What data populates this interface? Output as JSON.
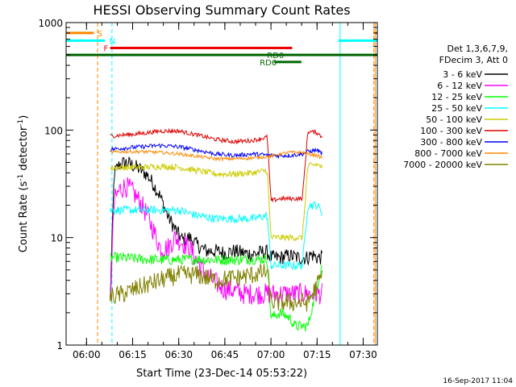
{
  "chart_data": {
    "type": "line",
    "title": "HESSI Observing Summary Count Rates",
    "xlabel": "Start Time (23-Dec-14 05:53:22)",
    "ylabel": "Count Rate (s⁻¹ detector⁻¹)",
    "ylabel_main": "Count Rate (s",
    "ylabel_sup1": "-1",
    "ylabel_mid": " detector",
    "ylabel_sup2": "-1",
    "ylabel_end": ")",
    "footer_text": "16-Sep-2017 11:04",
    "yscale": "log",
    "ylim": [
      1,
      1000
    ],
    "xlim": [
      5.8894,
      7.5767
    ],
    "x_unit": "hours UT",
    "x_ticks": [
      {
        "value": 6.0,
        "label": "06:00"
      },
      {
        "value": 6.25,
        "label": "06:15"
      },
      {
        "value": 6.5,
        "label": "06:30"
      },
      {
        "value": 6.75,
        "label": "06:45"
      },
      {
        "value": 7.0,
        "label": "07:00"
      },
      {
        "value": 7.25,
        "label": "07:15"
      },
      {
        "value": 7.5,
        "label": "07:30"
      }
    ],
    "y_ticks": [
      {
        "value": 1,
        "label": "1"
      },
      {
        "value": 10,
        "label": "10"
      },
      {
        "value": 100,
        "label": "100"
      },
      {
        "value": 1000,
        "label": "1000"
      }
    ],
    "legend": {
      "position": "right",
      "header_line1": "Det 1,3,6,7,9,",
      "header_line2": "FDecim 3, Att 0"
    },
    "series": [
      {
        "name": "3 - 6 keV",
        "color": "#000000",
        "x": [
          6.128,
          6.15,
          6.18,
          6.21,
          6.24,
          6.27,
          6.3,
          6.33,
          6.36,
          6.4,
          6.44,
          6.48,
          6.52,
          6.56,
          6.6,
          6.65,
          6.7,
          6.75,
          6.8,
          6.85,
          6.9,
          6.95,
          6.98,
          7.0,
          7.05,
          7.1,
          7.15,
          7.2,
          7.22,
          7.25,
          7.28
        ],
        "y": [
          2.5,
          40,
          48,
          50,
          48,
          45,
          42,
          38,
          32,
          24,
          16,
          12,
          9.5,
          10,
          8.5,
          7.5,
          7.5,
          7.2,
          7.5,
          7.2,
          7,
          7.3,
          7.3,
          6.5,
          6.5,
          6.8,
          6.5,
          6.5,
          7,
          6.5,
          6.5
        ]
      },
      {
        "name": "6 - 12 keV",
        "color": "#ff00ff",
        "x": [
          6.128,
          6.15,
          6.18,
          6.21,
          6.24,
          6.27,
          6.3,
          6.33,
          6.36,
          6.4,
          6.44,
          6.48,
          6.52,
          6.56,
          6.6,
          6.65,
          6.7,
          6.75,
          6.8,
          6.85,
          6.9,
          6.95,
          6.98,
          7.0,
          7.05,
          7.1,
          7.15,
          7.2,
          7.22,
          7.25,
          7.28
        ],
        "y": [
          2.5,
          22,
          28,
          30,
          28,
          24,
          20,
          16,
          12,
          8,
          8,
          10,
          9,
          8,
          6,
          4.5,
          3.8,
          3.3,
          3.2,
          3.0,
          3.0,
          3.0,
          3.0,
          3.0,
          3.0,
          3.0,
          3.0,
          3.0,
          3.0,
          3.0,
          3.0
        ]
      },
      {
        "name": "12 - 25 keV",
        "color": "#00ff00",
        "x": [
          6.128,
          6.2,
          6.3,
          6.4,
          6.5,
          6.6,
          6.7,
          6.8,
          6.9,
          6.98,
          7.0,
          7.05,
          7.1,
          7.13,
          7.2,
          7.28
        ],
        "y": [
          6.5,
          6.5,
          6.3,
          6.2,
          6.2,
          6.3,
          6.2,
          6.2,
          6.3,
          6.3,
          1.8,
          2.0,
          1.8,
          1.5,
          1.5,
          6.0
        ]
      },
      {
        "name": "25 - 50 keV",
        "color": "#00ffff",
        "x": [
          6.128,
          6.2,
          6.3,
          6.4,
          6.5,
          6.6,
          6.7,
          6.8,
          6.9,
          6.98,
          7.0,
          7.05,
          7.1,
          7.17,
          7.2,
          7.25,
          7.28
        ],
        "y": [
          18,
          18,
          18,
          18,
          18,
          16,
          15,
          15,
          15,
          16,
          5.5,
          5.5,
          5.5,
          5.5,
          20,
          20,
          17
        ]
      },
      {
        "name": "50 - 100 keV",
        "color": "#cccc00",
        "x": [
          6.128,
          6.2,
          6.3,
          6.4,
          6.5,
          6.6,
          6.7,
          6.8,
          6.9,
          6.98,
          7.0,
          7.05,
          7.1,
          7.17,
          7.2,
          7.25,
          7.28
        ],
        "y": [
          44,
          45,
          45,
          46,
          45,
          42,
          39,
          39,
          40,
          42,
          10,
          10,
          10,
          10,
          46,
          48,
          45
        ]
      },
      {
        "name": "100 - 300 keV",
        "color": "#dd0000",
        "x": [
          6.128,
          6.2,
          6.3,
          6.4,
          6.5,
          6.6,
          6.7,
          6.8,
          6.9,
          6.98,
          7.0,
          7.05,
          7.1,
          7.17,
          7.2,
          7.25,
          7.28
        ],
        "y": [
          88,
          90,
          93,
          98,
          98,
          90,
          82,
          78,
          80,
          86,
          22,
          23,
          23,
          23,
          97,
          95,
          85
        ]
      },
      {
        "name": "300 - 800 keV",
        "color": "#0000ff",
        "x": [
          6.128,
          6.2,
          6.3,
          6.4,
          6.5,
          6.6,
          6.7,
          6.8,
          6.9,
          7.0,
          7.05,
          7.1,
          7.17,
          7.2,
          7.25,
          7.28
        ],
        "y": [
          66,
          68,
          70,
          72,
          70,
          65,
          60,
          58,
          60,
          58,
          58,
          58,
          60,
          63,
          65,
          60
        ]
      },
      {
        "name": "800 - 7000 keV",
        "color": "#ff8800",
        "x": [
          6.128,
          6.2,
          6.3,
          6.4,
          6.5,
          6.6,
          6.7,
          6.8,
          6.9,
          7.0,
          7.05,
          7.1,
          7.17,
          7.2,
          7.25,
          7.28
        ],
        "y": [
          62,
          63,
          63,
          62,
          60,
          57,
          54,
          54,
          55,
          57,
          60,
          62,
          62,
          60,
          58,
          55
        ]
      },
      {
        "name": "7000 - 20000 keV",
        "color": "#808000",
        "x": [
          6.128,
          6.2,
          6.3,
          6.4,
          6.5,
          6.6,
          6.7,
          6.8,
          6.9,
          6.98,
          7.0,
          7.1,
          7.2,
          7.28
        ],
        "y": [
          2.8,
          3.0,
          3.5,
          4.0,
          4.5,
          4.5,
          4.0,
          4.2,
          4.5,
          4.8,
          2.5,
          2.5,
          2.5,
          4.5
        ]
      }
    ],
    "flag_bars": [
      {
        "label": "S",
        "color": "#ff8800",
        "y": 800,
        "segments": [
          [
            5.89,
            6.04
          ],
          [
            7.56,
            7.577
          ]
        ],
        "label_at": 6.072
      },
      {
        "label": "N",
        "color": "#00ffff",
        "y": 680,
        "segments": [
          [
            5.89,
            6.1
          ],
          [
            7.365,
            7.577
          ]
        ],
        "label_at": 6.14
      },
      {
        "label": "F",
        "color": "#ee0000",
        "y": 580,
        "segments": [
          [
            6.128,
            7.115
          ]
        ],
        "label_at": 6.105
      },
      {
        "label": "RD0",
        "color": "#006600",
        "y": 500,
        "segments": [
          [
            5.89,
            7.577
          ]
        ],
        "label_at": 7.025
      },
      {
        "label": "RD6",
        "color": "#006600",
        "y": 430,
        "segments": [
          [
            7.018,
            7.165
          ]
        ],
        "label_at": 6.985
      }
    ],
    "vlines": [
      {
        "x": 6.06,
        "color": "#ff8800",
        "style": "dashed"
      },
      {
        "x": 6.138,
        "color": "#00ffff",
        "style": "dashed"
      },
      {
        "x": 7.375,
        "color": "#00ffff",
        "style": "solid"
      },
      {
        "x": 7.558,
        "color": "#ff8800",
        "style": "dashed"
      },
      {
        "x": 7.565,
        "color": "#ff8800",
        "style": "solid"
      }
    ]
  }
}
